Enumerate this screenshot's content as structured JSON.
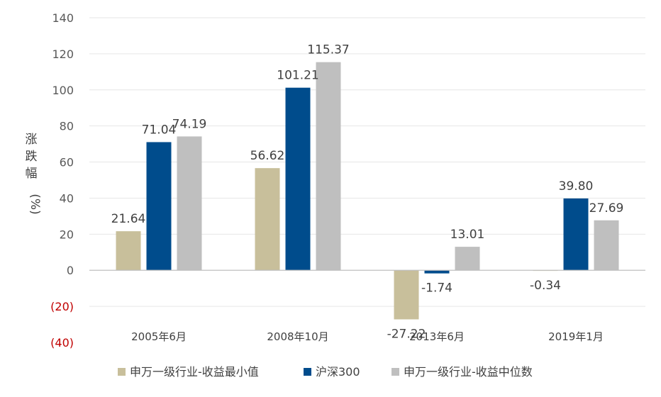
{
  "chart_data": {
    "type": "bar",
    "title": "",
    "xlabel": "",
    "ylabel_chars": [
      "涨",
      "跌",
      "幅"
    ],
    "ylabel_unit": "(%)",
    "ylim": [
      -40,
      140
    ],
    "yticks": [
      140,
      120,
      100,
      80,
      60,
      40,
      20,
      0,
      -20,
      -40
    ],
    "ytick_labels": [
      "140",
      "120",
      "100",
      "80",
      "60",
      "40",
      "20",
      "0",
      "(20)",
      "(40)"
    ],
    "grid": true,
    "legend_position": "bottom",
    "categories": [
      "2005年6月",
      "2008年10月",
      "2013年6月",
      "2019年1月"
    ],
    "series": [
      {
        "name": "申万一级行业-收益最小值",
        "color": "#c8bf9b",
        "values": [
          21.64,
          56.62,
          -27.22,
          -0.34
        ],
        "labels": [
          "21.64",
          "56.62",
          "-27.22",
          "-0.34"
        ]
      },
      {
        "name": "沪深300",
        "color": "#004c8c",
        "values": [
          71.04,
          101.21,
          -1.74,
          39.8
        ],
        "labels": [
          "71.04",
          "101.21",
          "-1.74",
          "39.80"
        ]
      },
      {
        "name": "申万一级行业-收益中位数",
        "color": "#bfbfbf",
        "values": [
          74.19,
          115.37,
          13.01,
          27.69
        ],
        "labels": [
          "74.19",
          "115.37",
          "13.01",
          "27.69"
        ]
      }
    ]
  }
}
